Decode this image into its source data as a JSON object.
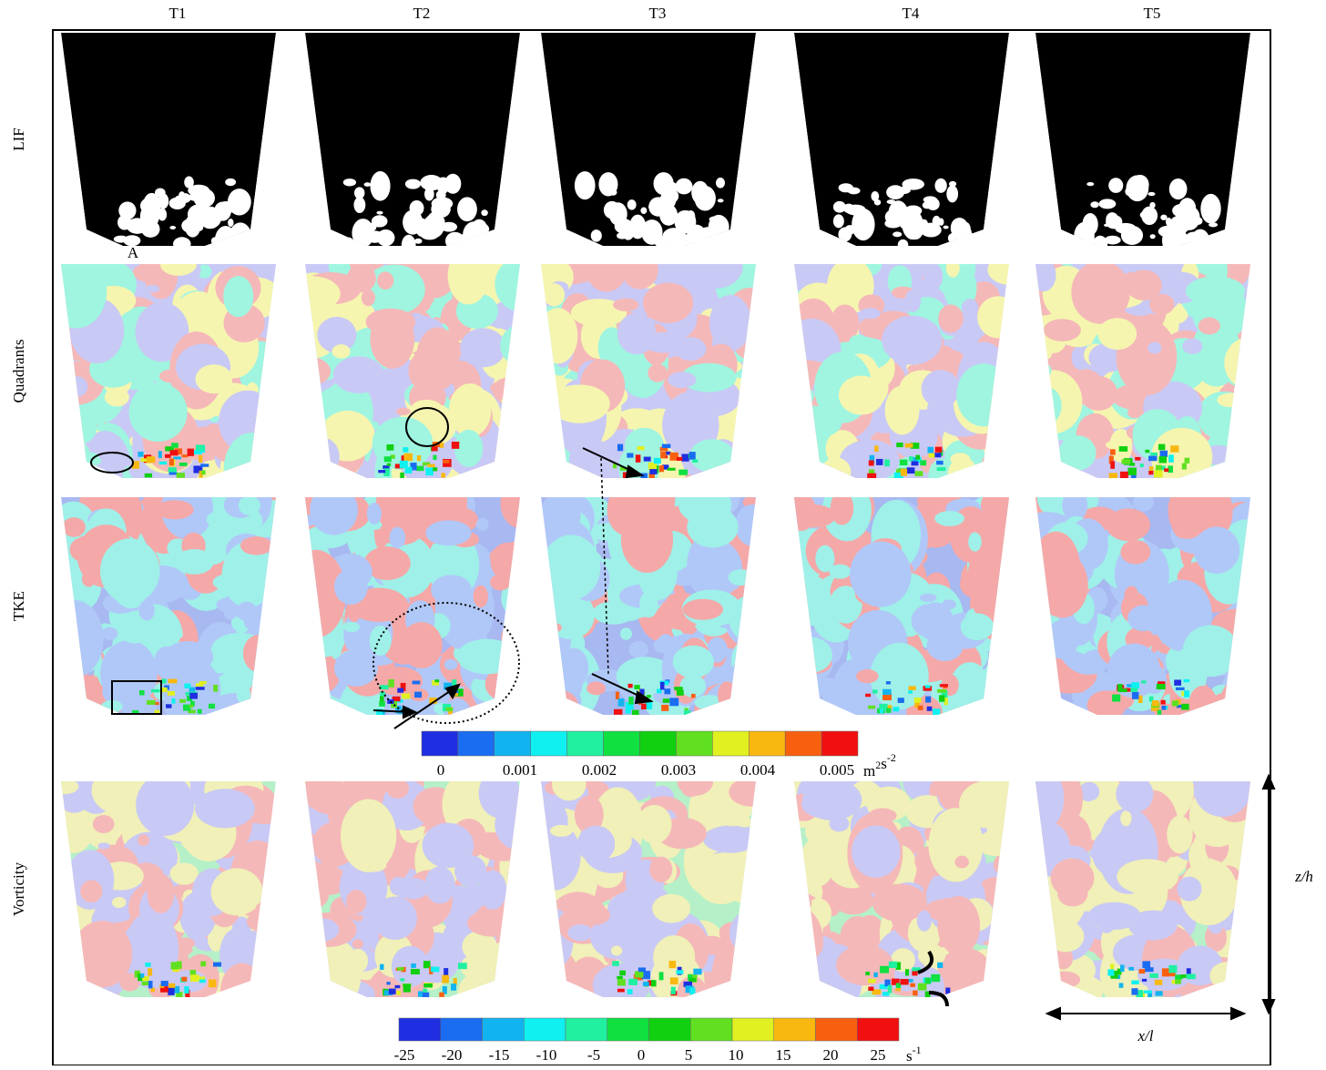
{
  "columns": [
    "T1",
    "T2",
    "T3",
    "T4",
    "T5"
  ],
  "rows": [
    "LIF",
    "Quadrants",
    "TKE",
    "Vorticity"
  ],
  "annotation": "A",
  "tke_colorbar": {
    "ticks": [
      "0",
      "0.001",
      "0.002",
      "0.003",
      "0.004",
      "0.005"
    ],
    "unit": [
      {
        "base": "m",
        "sup": "2"
      },
      {
        "base": "s",
        "sup": "-2"
      }
    ],
    "colors": [
      "#1f2ee0",
      "#1a6cf0",
      "#12b4f0",
      "#10f0f0",
      "#20f0a0",
      "#10e040",
      "#10d010",
      "#60e020",
      "#e0f020",
      "#f8b810",
      "#f86010",
      "#f01010"
    ]
  },
  "vorticity_colorbar": {
    "ticks": [
      "-25",
      "-20",
      "-15",
      "-10",
      "-5",
      "0",
      "5",
      "10",
      "15",
      "20",
      "25"
    ],
    "unit": [
      {
        "base": "s",
        "sup": "-1"
      }
    ],
    "colors": [
      "#1f2ee0",
      "#1a6cf0",
      "#12b4f0",
      "#10f0f0",
      "#20f0a0",
      "#10e040",
      "#10d010",
      "#60e020",
      "#e0f020",
      "#f8b810",
      "#f86010",
      "#f01010"
    ]
  },
  "axes": {
    "vertical": "z/h",
    "horizontal": "x/l"
  }
}
